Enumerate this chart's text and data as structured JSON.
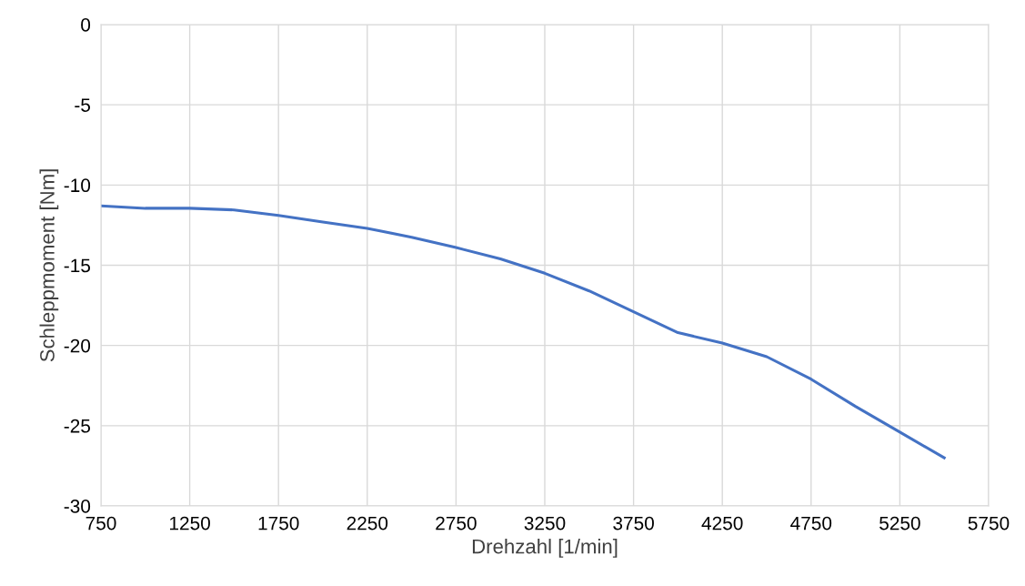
{
  "chart_data": {
    "type": "line",
    "xlabel": "Drehzahl [1/min]",
    "ylabel": "Schleppmoment [Nm]",
    "x": [
      750,
      1000,
      1250,
      1500,
      1750,
      2000,
      2250,
      2500,
      2750,
      3000,
      3250,
      3500,
      3750,
      4000,
      4250,
      4500,
      4750,
      5000,
      5250,
      5500
    ],
    "series": [
      {
        "color": "#4472c4",
        "values": [
          -11.3,
          -11.45,
          -11.45,
          -11.55,
          -11.9,
          -12.3,
          -12.7,
          -13.25,
          -13.9,
          -14.6,
          -15.5,
          -16.6,
          -17.9,
          -19.2,
          -19.85,
          -20.7,
          -22.1,
          -23.8,
          -25.4,
          -27.0
        ]
      }
    ],
    "xlim": [
      750,
      5750
    ],
    "xticks": [
      750,
      1250,
      1750,
      2250,
      2750,
      3250,
      3750,
      4250,
      4750,
      5250,
      5750
    ],
    "ylim": [
      -30,
      0
    ],
    "yticks": [
      -30,
      -25,
      -20,
      -15,
      -10,
      -5,
      0
    ],
    "grid": true,
    "marker": "none",
    "line_style": "solid",
    "legend": false
  }
}
